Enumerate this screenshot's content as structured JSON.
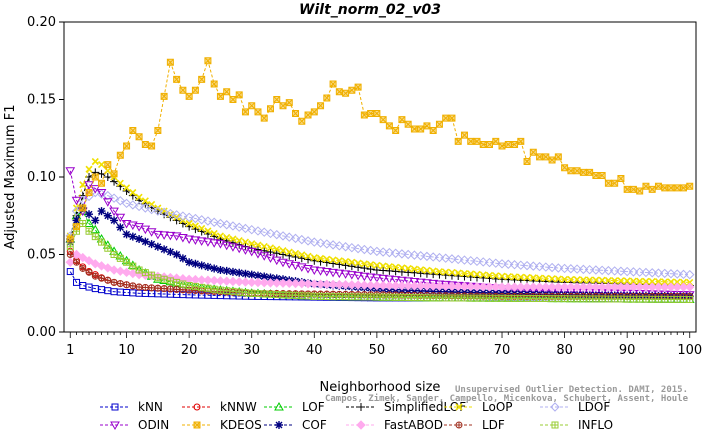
{
  "chart_data": {
    "type": "line",
    "title": "Wilt_norm_02_v03",
    "xlabel": "Neighborhood size",
    "ylabel": "Adjusted Maximum F1",
    "xlim": [
      0,
      101
    ],
    "ylim": [
      0,
      0.2
    ],
    "x_ticks": [
      1,
      10,
      20,
      30,
      40,
      50,
      60,
      70,
      80,
      90,
      100
    ],
    "y_ticks": [
      "0.00",
      "0.05",
      "0.10",
      "0.15",
      "0.20"
    ],
    "legend_position": "bottom",
    "series": [
      {
        "name": "kNN",
        "color": "#0000cc",
        "marker": "square",
        "points": [
          [
            1,
            0.039
          ],
          [
            2,
            0.032
          ],
          [
            3,
            0.03
          ],
          [
            5,
            0.028
          ],
          [
            8,
            0.026
          ],
          [
            12,
            0.025
          ],
          [
            20,
            0.024
          ],
          [
            30,
            0.023
          ],
          [
            50,
            0.022
          ],
          [
            70,
            0.022
          ],
          [
            100,
            0.021
          ]
        ]
      },
      {
        "name": "kNNW",
        "color": "#e00000",
        "marker": "circle",
        "points": [
          [
            1,
            0.052
          ],
          [
            2,
            0.046
          ],
          [
            3,
            0.042
          ],
          [
            4,
            0.039
          ],
          [
            6,
            0.035
          ],
          [
            8,
            0.032
          ],
          [
            12,
            0.029
          ],
          [
            20,
            0.027
          ],
          [
            30,
            0.025
          ],
          [
            50,
            0.024
          ],
          [
            70,
            0.023
          ],
          [
            100,
            0.023
          ]
        ]
      },
      {
        "name": "LOF",
        "color": "#00cc00",
        "marker": "triangle-up",
        "points": [
          [
            1,
            0.06
          ],
          [
            2,
            0.075
          ],
          [
            3,
            0.078
          ],
          [
            4,
            0.07
          ],
          [
            5,
            0.066
          ],
          [
            6,
            0.06
          ],
          [
            8,
            0.052
          ],
          [
            10,
            0.046
          ],
          [
            12,
            0.04
          ],
          [
            15,
            0.034
          ],
          [
            20,
            0.03
          ],
          [
            25,
            0.027
          ],
          [
            30,
            0.025
          ],
          [
            40,
            0.023
          ],
          [
            60,
            0.022
          ],
          [
            100,
            0.021
          ]
        ]
      },
      {
        "name": "SimplifiedLOF",
        "color": "#000000",
        "marker": "plus",
        "points": [
          [
            1,
            0.06
          ],
          [
            2,
            0.075
          ],
          [
            3,
            0.088
          ],
          [
            4,
            0.1
          ],
          [
            5,
            0.103
          ],
          [
            6,
            0.102
          ],
          [
            7,
            0.1
          ],
          [
            9,
            0.094
          ],
          [
            12,
            0.085
          ],
          [
            15,
            0.078
          ],
          [
            20,
            0.068
          ],
          [
            25,
            0.06
          ],
          [
            30,
            0.054
          ],
          [
            40,
            0.046
          ],
          [
            50,
            0.04
          ],
          [
            60,
            0.037
          ],
          [
            70,
            0.034
          ],
          [
            80,
            0.032
          ],
          [
            90,
            0.031
          ],
          [
            100,
            0.03
          ]
        ]
      },
      {
        "name": "LoOP",
        "color": "#f0e000",
        "marker": "x",
        "points": [
          [
            1,
            0.062
          ],
          [
            2,
            0.08
          ],
          [
            3,
            0.095
          ],
          [
            4,
            0.105
          ],
          [
            5,
            0.11
          ],
          [
            6,
            0.108
          ],
          [
            7,
            0.104
          ],
          [
            9,
            0.096
          ],
          [
            12,
            0.087
          ],
          [
            15,
            0.08
          ],
          [
            20,
            0.07
          ],
          [
            25,
            0.062
          ],
          [
            30,
            0.057
          ],
          [
            40,
            0.048
          ],
          [
            50,
            0.043
          ],
          [
            60,
            0.039
          ],
          [
            70,
            0.036
          ],
          [
            80,
            0.034
          ],
          [
            90,
            0.033
          ],
          [
            100,
            0.032
          ]
        ]
      },
      {
        "name": "LDOF",
        "color": "#b0b0f0",
        "marker": "diamond",
        "points": [
          [
            1,
            0.062
          ],
          [
            2,
            0.078
          ],
          [
            3,
            0.085
          ],
          [
            5,
            0.09
          ],
          [
            7,
            0.088
          ],
          [
            10,
            0.083
          ],
          [
            15,
            0.078
          ],
          [
            20,
            0.074
          ],
          [
            25,
            0.07
          ],
          [
            30,
            0.066
          ],
          [
            40,
            0.058
          ],
          [
            50,
            0.052
          ],
          [
            60,
            0.048
          ],
          [
            70,
            0.044
          ],
          [
            80,
            0.041
          ],
          [
            90,
            0.039
          ],
          [
            100,
            0.037
          ]
        ]
      },
      {
        "name": "ODIN",
        "color": "#9900cc",
        "marker": "triangle-down",
        "points": [
          [
            1,
            0.104
          ],
          [
            2,
            0.085
          ],
          [
            3,
            0.078
          ],
          [
            4,
            0.095
          ],
          [
            6,
            0.09
          ],
          [
            8,
            0.078
          ],
          [
            10,
            0.07
          ],
          [
            12,
            0.068
          ],
          [
            15,
            0.063
          ],
          [
            18,
            0.062
          ],
          [
            20,
            0.06
          ],
          [
            25,
            0.057
          ],
          [
            28,
            0.054
          ],
          [
            30,
            0.052
          ],
          [
            35,
            0.045
          ],
          [
            40,
            0.04
          ],
          [
            50,
            0.035
          ],
          [
            60,
            0.031
          ],
          [
            70,
            0.028
          ],
          [
            80,
            0.026
          ],
          [
            100,
            0.024
          ]
        ]
      },
      {
        "name": "KDEOS",
        "color": "#f0b000",
        "marker": "square-x",
        "points": [
          [
            1,
            0.06
          ],
          [
            2,
            0.068
          ],
          [
            3,
            0.08
          ],
          [
            4,
            0.09
          ],
          [
            5,
            0.1
          ],
          [
            6,
            0.096
          ],
          [
            7,
            0.108
          ],
          [
            8,
            0.102
          ],
          [
            9,
            0.114
          ],
          [
            10,
            0.12
          ],
          [
            11,
            0.13
          ],
          [
            12,
            0.126
          ],
          [
            13,
            0.121
          ],
          [
            14,
            0.12
          ],
          [
            15,
            0.13
          ],
          [
            16,
            0.152
          ],
          [
            17,
            0.174
          ],
          [
            18,
            0.163
          ],
          [
            19,
            0.156
          ],
          [
            20,
            0.152
          ],
          [
            21,
            0.156
          ],
          [
            22,
            0.163
          ],
          [
            23,
            0.175
          ],
          [
            24,
            0.16
          ],
          [
            25,
            0.152
          ],
          [
            26,
            0.155
          ],
          [
            27,
            0.15
          ],
          [
            28,
            0.153
          ],
          [
            29,
            0.142
          ],
          [
            30,
            0.146
          ],
          [
            31,
            0.142
          ],
          [
            32,
            0.138
          ],
          [
            33,
            0.144
          ],
          [
            34,
            0.15
          ],
          [
            35,
            0.146
          ],
          [
            36,
            0.148
          ],
          [
            37,
            0.141
          ],
          [
            38,
            0.136
          ],
          [
            39,
            0.14
          ],
          [
            40,
            0.142
          ],
          [
            41,
            0.146
          ],
          [
            42,
            0.151
          ],
          [
            43,
            0.16
          ],
          [
            44,
            0.155
          ],
          [
            45,
            0.154
          ],
          [
            46,
            0.156
          ],
          [
            47,
            0.158
          ],
          [
            48,
            0.14
          ],
          [
            49,
            0.141
          ],
          [
            50,
            0.141
          ],
          [
            51,
            0.137
          ],
          [
            52,
            0.133
          ],
          [
            53,
            0.13
          ],
          [
            54,
            0.137
          ],
          [
            55,
            0.134
          ],
          [
            56,
            0.131
          ],
          [
            57,
            0.131
          ],
          [
            58,
            0.133
          ],
          [
            59,
            0.13
          ],
          [
            60,
            0.134
          ],
          [
            61,
            0.138
          ],
          [
            62,
            0.138
          ],
          [
            63,
            0.123
          ],
          [
            64,
            0.127
          ],
          [
            65,
            0.123
          ],
          [
            66,
            0.123
          ],
          [
            67,
            0.121
          ],
          [
            68,
            0.121
          ],
          [
            69,
            0.123
          ],
          [
            70,
            0.12
          ],
          [
            71,
            0.121
          ],
          [
            72,
            0.121
          ],
          [
            73,
            0.123
          ],
          [
            74,
            0.11
          ],
          [
            75,
            0.116
          ],
          [
            76,
            0.113
          ],
          [
            77,
            0.113
          ],
          [
            78,
            0.111
          ],
          [
            79,
            0.113
          ],
          [
            80,
            0.106
          ],
          [
            81,
            0.104
          ],
          [
            82,
            0.104
          ],
          [
            83,
            0.103
          ],
          [
            84,
            0.103
          ],
          [
            85,
            0.101
          ],
          [
            86,
            0.101
          ],
          [
            87,
            0.096
          ],
          [
            88,
            0.096
          ],
          [
            89,
            0.099
          ],
          [
            90,
            0.092
          ],
          [
            91,
            0.092
          ],
          [
            92,
            0.091
          ],
          [
            93,
            0.094
          ],
          [
            94,
            0.092
          ],
          [
            95,
            0.094
          ],
          [
            96,
            0.093
          ],
          [
            97,
            0.093
          ],
          [
            98,
            0.093
          ],
          [
            99,
            0.093
          ],
          [
            100,
            0.094
          ]
        ]
      },
      {
        "name": "COF",
        "color": "#000080",
        "marker": "asterisk",
        "points": [
          [
            1,
            0.058
          ],
          [
            2,
            0.072
          ],
          [
            3,
            0.08
          ],
          [
            4,
            0.076
          ],
          [
            5,
            0.072
          ],
          [
            6,
            0.078
          ],
          [
            8,
            0.072
          ],
          [
            10,
            0.063
          ],
          [
            12,
            0.06
          ],
          [
            15,
            0.055
          ],
          [
            18,
            0.05
          ],
          [
            20,
            0.045
          ],
          [
            25,
            0.04
          ],
          [
            30,
            0.037
          ],
          [
            35,
            0.034
          ],
          [
            40,
            0.031
          ],
          [
            50,
            0.028
          ],
          [
            60,
            0.026
          ],
          [
            80,
            0.024
          ],
          [
            100,
            0.023
          ]
        ]
      },
      {
        "name": "FastABOD",
        "color": "#ffaaee",
        "marker": "diamond-filled",
        "points": [
          [
            1,
            0.045
          ],
          [
            2,
            0.05
          ],
          [
            3,
            0.048
          ],
          [
            5,
            0.044
          ],
          [
            8,
            0.04
          ],
          [
            12,
            0.037
          ],
          [
            20,
            0.034
          ],
          [
            30,
            0.032
          ],
          [
            50,
            0.03
          ],
          [
            70,
            0.029
          ],
          [
            100,
            0.029
          ]
        ]
      },
      {
        "name": "LDF",
        "color": "#a03020",
        "marker": "circle-plus",
        "points": [
          [
            1,
            0.05
          ],
          [
            2,
            0.045
          ],
          [
            3,
            0.041
          ],
          [
            5,
            0.036
          ],
          [
            8,
            0.032
          ],
          [
            12,
            0.029
          ],
          [
            20,
            0.027
          ],
          [
            30,
            0.025
          ],
          [
            50,
            0.024
          ],
          [
            70,
            0.023
          ],
          [
            100,
            0.023
          ]
        ]
      },
      {
        "name": "INFLO",
        "color": "#99cc33",
        "marker": "square-plus",
        "points": [
          [
            1,
            0.055
          ],
          [
            2,
            0.065
          ],
          [
            3,
            0.07
          ],
          [
            4,
            0.065
          ],
          [
            6,
            0.058
          ],
          [
            8,
            0.05
          ],
          [
            10,
            0.045
          ],
          [
            12,
            0.04
          ],
          [
            15,
            0.035
          ],
          [
            20,
            0.03
          ],
          [
            25,
            0.027
          ],
          [
            30,
            0.025
          ],
          [
            40,
            0.023
          ],
          [
            60,
            0.022
          ],
          [
            100,
            0.021
          ]
        ]
      }
    ]
  },
  "watermark": {
    "line1": "Unsupervised Outlier Detection. DAMI, 2015.",
    "line2": "Campos, Zimek, Sander, Campello, Micenkova, Schubert, Assent, Houle"
  }
}
